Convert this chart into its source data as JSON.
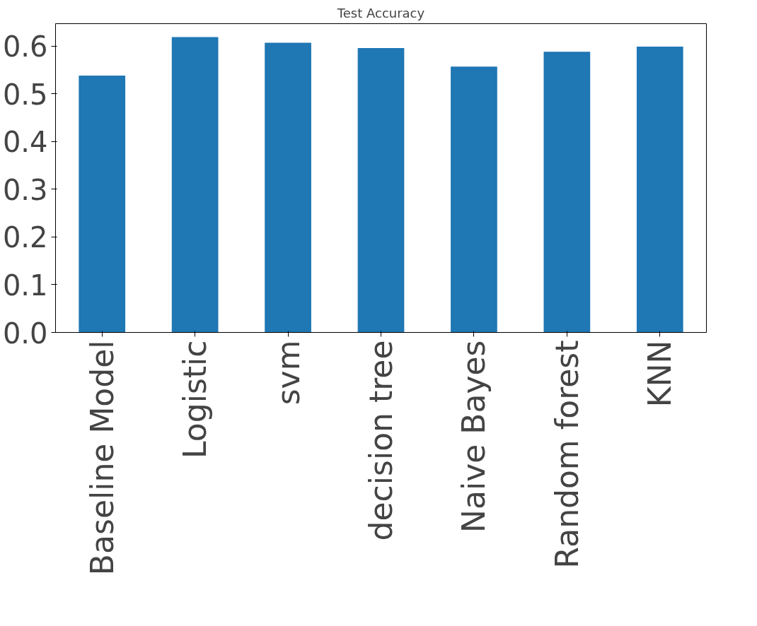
{
  "chart_data": {
    "type": "bar",
    "title": "Test Accuracy",
    "categories": [
      "Baseline Model",
      "Logistic",
      "svm",
      "decision tree",
      "Naive Bayes",
      "Random forest",
      "KNN"
    ],
    "values": [
      0.538,
      0.619,
      0.607,
      0.596,
      0.557,
      0.588,
      0.599
    ],
    "color": "#1f77b4",
    "ylim": [
      0,
      0.647
    ],
    "yticks": [
      {
        "value": 0,
        "label": "0.0"
      },
      {
        "value": 0.1,
        "label": "0.1"
      },
      {
        "value": 0.2,
        "label": "0.2"
      },
      {
        "value": 0.3,
        "label": "0.3"
      },
      {
        "value": 0.4,
        "label": "0.4"
      },
      {
        "value": 0.5,
        "label": "0.5"
      },
      {
        "value": 0.6,
        "label": "0.6"
      }
    ],
    "grid": false
  }
}
